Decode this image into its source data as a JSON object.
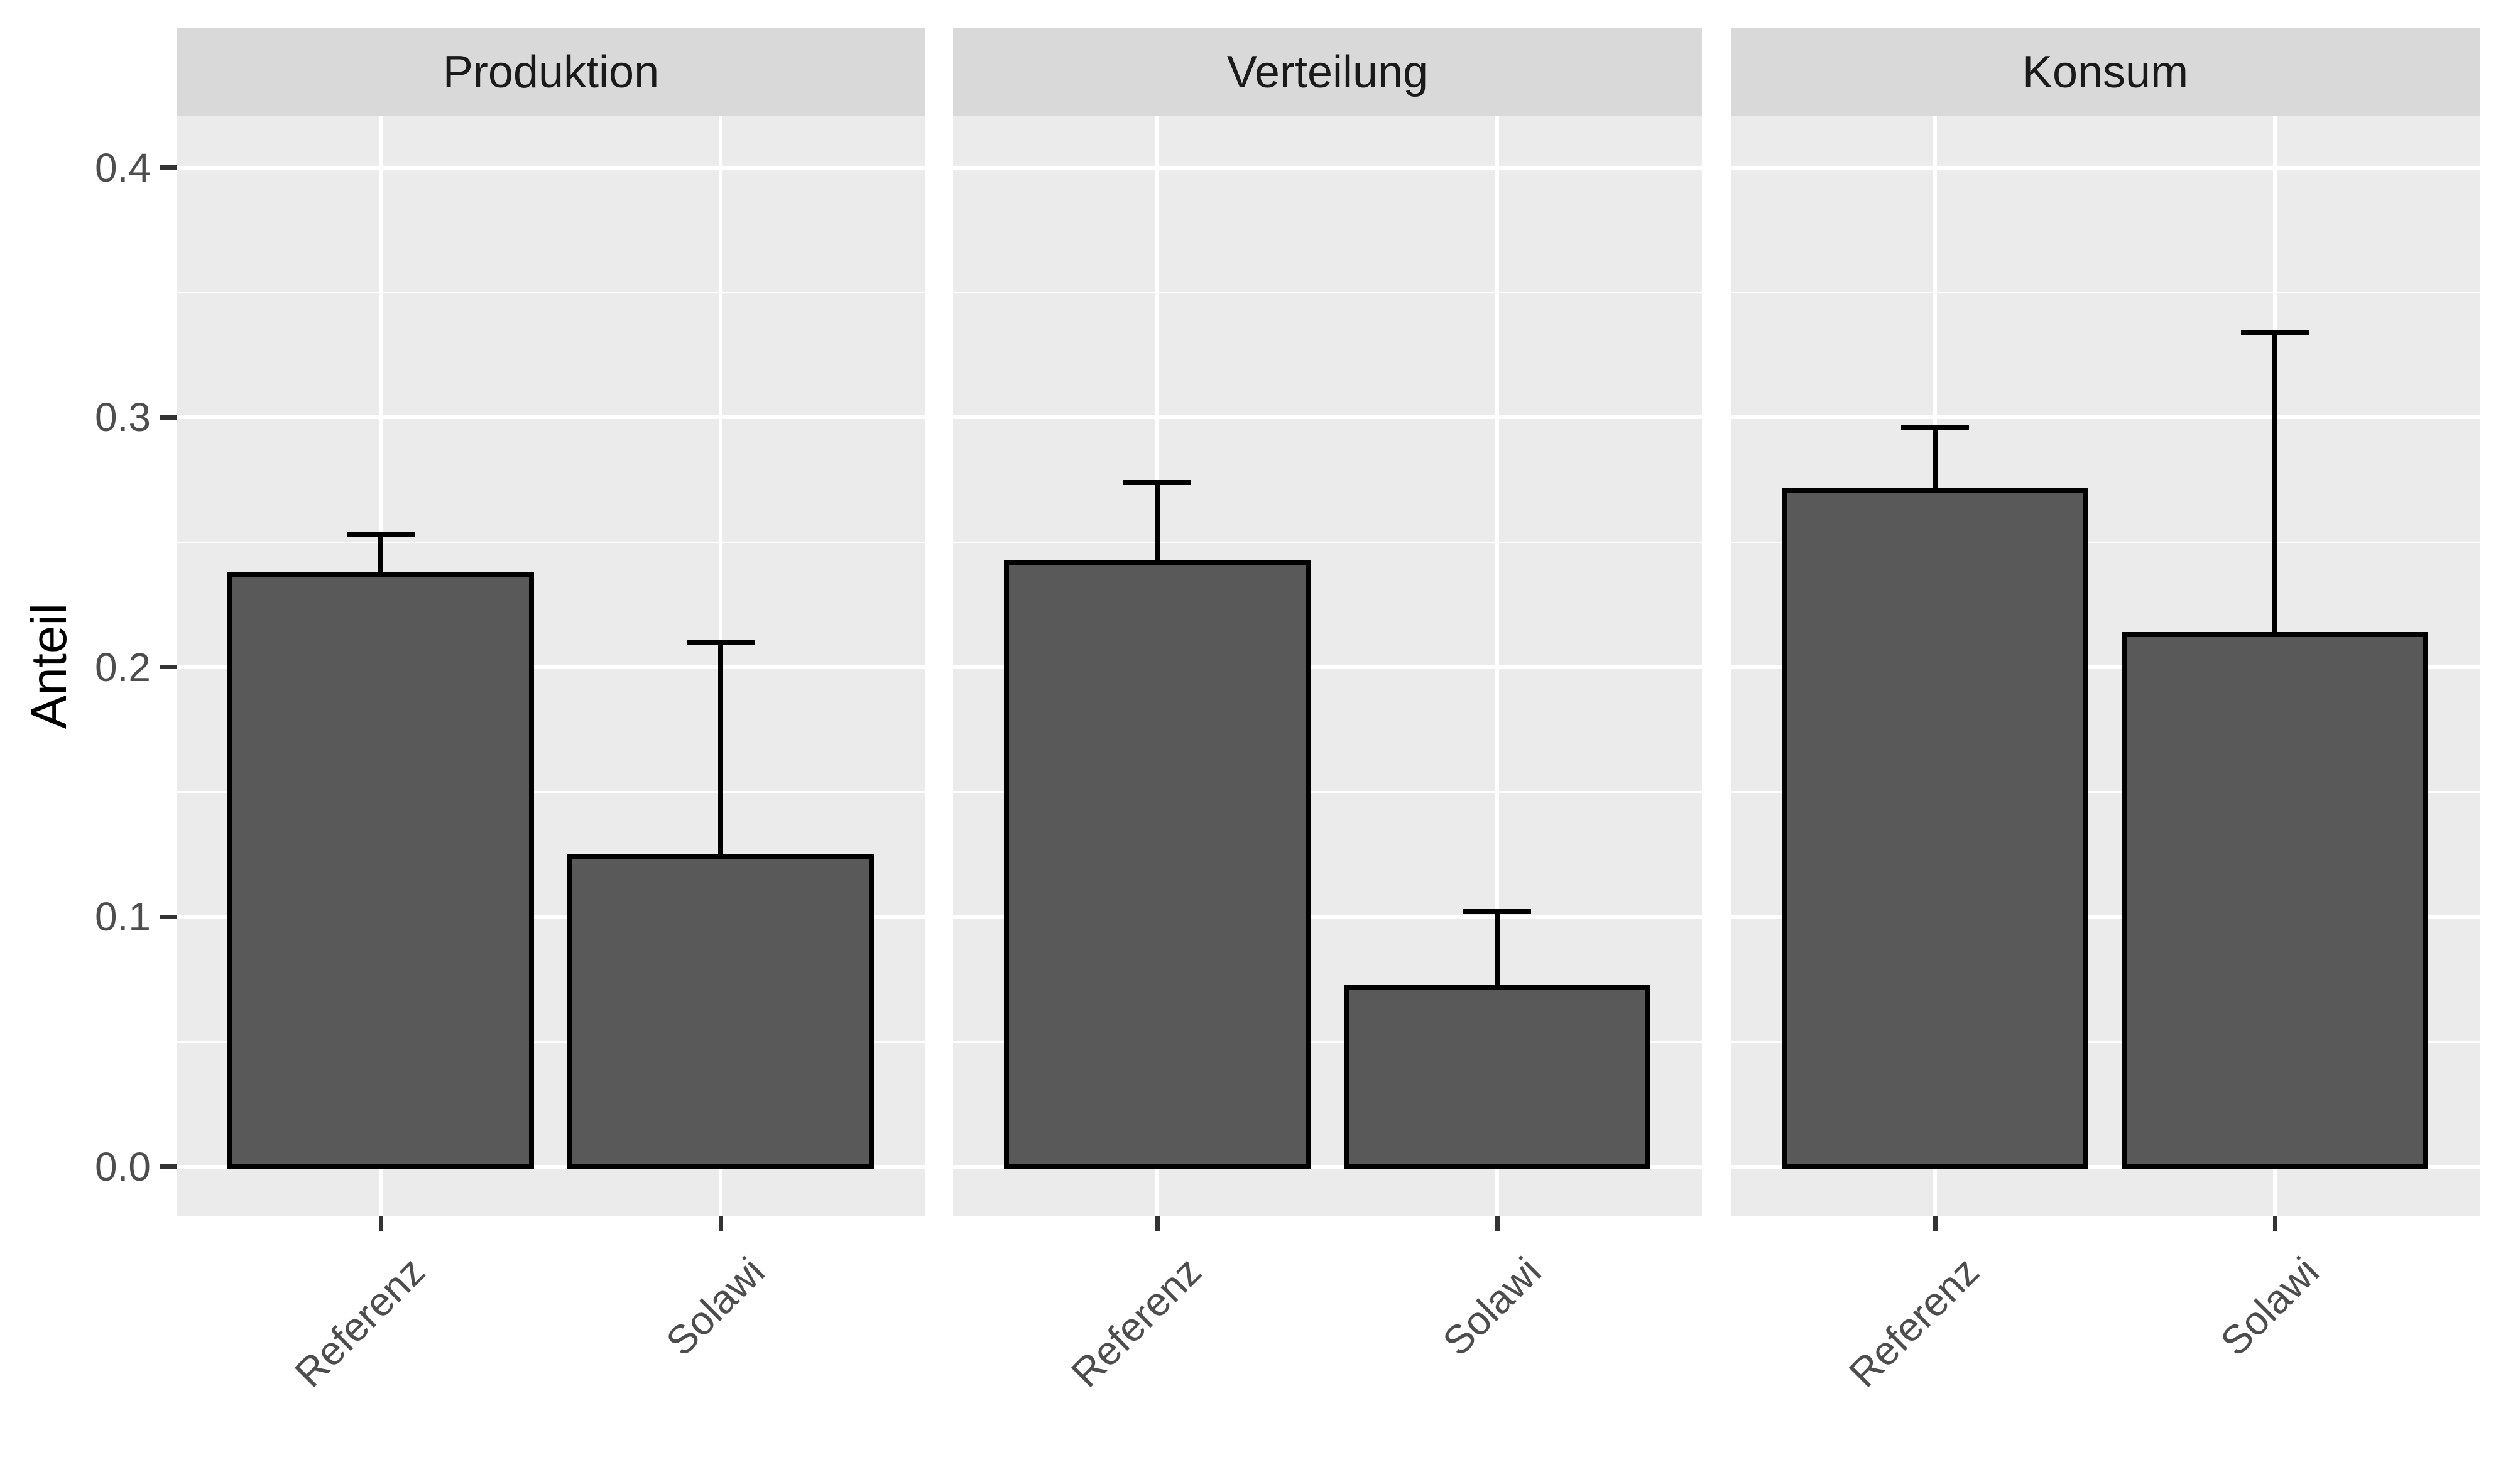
{
  "chart_data": {
    "type": "bar",
    "title": "",
    "subtitle": "",
    "xlabel": "",
    "ylabel": "Anteil",
    "facet_labels": [
      "Produktion",
      "Verteilung",
      "Konsum"
    ],
    "categories": [
      "Referenz",
      "Solawi"
    ],
    "facets": [
      {
        "label": "Produktion",
        "bars": [
          {
            "category": "Referenz",
            "value": 0.237,
            "error_top": 0.253
          },
          {
            "category": "Solawi",
            "value": 0.124,
            "error_top": 0.21
          }
        ]
      },
      {
        "label": "Verteilung",
        "bars": [
          {
            "category": "Referenz",
            "value": 0.242,
            "error_top": 0.274
          },
          {
            "category": "Solawi",
            "value": 0.072,
            "error_top": 0.102
          }
        ]
      },
      {
        "label": "Konsum",
        "bars": [
          {
            "category": "Referenz",
            "value": 0.271,
            "error_top": 0.296
          },
          {
            "category": "Solawi",
            "value": 0.213,
            "error_top": 0.334
          }
        ]
      }
    ],
    "series": [
      {
        "name": "Referenz",
        "values": [
          0.237,
          0.242,
          0.271
        ],
        "error_top": [
          0.253,
          0.274,
          0.296
        ]
      },
      {
        "name": "Solawi",
        "values": [
          0.124,
          0.072,
          0.213
        ],
        "error_top": [
          0.21,
          0.102,
          0.334
        ]
      }
    ],
    "y_axis": {
      "ticks": [
        {
          "label": "0.0",
          "value": 0.0
        },
        {
          "label": "0.1",
          "value": 0.1
        },
        {
          "label": "0.2",
          "value": 0.2
        },
        {
          "label": "0.3",
          "value": 0.3
        },
        {
          "label": "0.4",
          "value": 0.4
        }
      ],
      "minor_ticks": [
        0.05,
        0.15,
        0.25,
        0.35
      ],
      "ylim": [
        -0.0199,
        0.4206
      ],
      "grid": true
    },
    "x_axis": {
      "tick_labels": [
        "Referenz",
        "Solawi"
      ],
      "label_angle_deg": 45
    },
    "legend": null,
    "error_bars": "upper-only"
  },
  "style": {
    "figure_bg": "#FFFFFF",
    "panel_bg": "#EBEBEB",
    "strip_bg": "#D9D9D9",
    "bar_fill": "#595959",
    "bar_stroke": "#000000",
    "grid_color": "#FFFFFF",
    "tick_mark_color": "#333333",
    "tick_text_color": "#4D4D4D",
    "strip_text_color": "#1A1A1A",
    "axis_title_color": "#000000"
  }
}
